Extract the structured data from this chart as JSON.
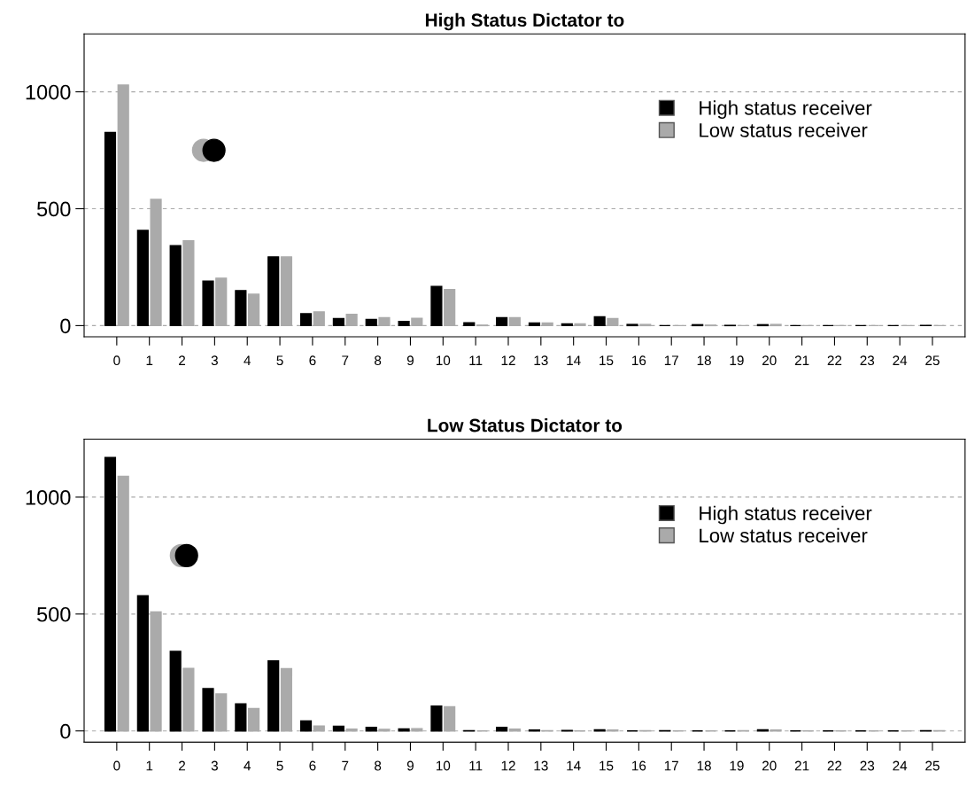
{
  "chart_data": [
    {
      "type": "bar",
      "title": "High Status Dictator to",
      "x": [
        0,
        1,
        2,
        3,
        4,
        5,
        6,
        7,
        8,
        9,
        10,
        11,
        12,
        13,
        14,
        15,
        16,
        17,
        18,
        19,
        20,
        21,
        22,
        23,
        24,
        25
      ],
      "xlim": [
        -1,
        26
      ],
      "xticks": [
        0,
        1,
        2,
        3,
        4,
        5,
        6,
        7,
        8,
        9,
        10,
        11,
        12,
        13,
        14,
        15,
        16,
        17,
        18,
        19,
        20,
        21,
        22,
        23,
        24,
        25
      ],
      "ylim": [
        -48,
        1248
      ],
      "yticks": [
        0,
        500,
        1000
      ],
      "grid": "y",
      "legend": "top right",
      "marker": "circle",
      "series": [
        {
          "name": "High status receiver",
          "color": "#000000",
          "values": [
            826,
            407,
            342,
            190,
            150,
            294,
            51,
            30,
            26,
            18,
            168,
            12,
            34,
            11,
            7,
            38,
            5,
            0,
            4,
            1,
            4,
            0,
            0,
            0,
            0,
            1
          ]
        },
        {
          "name": "Low status receiver",
          "color": "#aaaaaa",
          "values": [
            1029,
            540,
            363,
            203,
            134,
            294,
            59,
            48,
            34,
            31,
            154,
            2,
            34,
            11,
            7,
            30,
            5,
            0,
            2,
            0,
            5,
            0,
            0,
            0,
            0,
            0
          ]
        },
        {
          "type": "scatter",
          "color": "#aaaaaa",
          "x": [
            2.66
          ],
          "values": [
            750
          ]
        },
        {
          "type": "scatter",
          "color": "#000000",
          "x": [
            2.98
          ],
          "values": [
            750
          ]
        }
      ]
    },
    {
      "type": "bar",
      "title": "Low Status Dictator to",
      "x": [
        0,
        1,
        2,
        3,
        4,
        5,
        6,
        7,
        8,
        9,
        10,
        11,
        12,
        13,
        14,
        15,
        16,
        17,
        18,
        19,
        20,
        21,
        22,
        23,
        24,
        25
      ],
      "xlim": [
        -1,
        26
      ],
      "xticks": [
        0,
        1,
        2,
        3,
        4,
        5,
        6,
        7,
        8,
        9,
        10,
        11,
        12,
        13,
        14,
        15,
        16,
        17,
        18,
        19,
        20,
        21,
        22,
        23,
        24,
        25
      ],
      "ylim": [
        -48,
        1248
      ],
      "yticks": [
        0,
        500,
        1000
      ],
      "grid": "y",
      "legend": "top right",
      "marker": "circle",
      "series": [
        {
          "name": "High status receiver",
          "color": "#000000",
          "values": [
            1170,
            578,
            340,
            181,
            116,
            300,
            43,
            20,
            15,
            9,
            106,
            1,
            15,
            4,
            2,
            5,
            0,
            1,
            0,
            0,
            5,
            0,
            0,
            0,
            0,
            1
          ]
        },
        {
          "name": "Low status receiver",
          "color": "#aaaaaa",
          "values": [
            1089,
            509,
            267,
            158,
            96,
            266,
            21,
            8,
            7,
            10,
            103,
            0,
            8,
            1,
            0,
            4,
            1,
            0,
            0,
            1,
            4,
            0,
            0,
            0,
            0,
            1
          ]
        },
        {
          "type": "scatter",
          "color": "#aaaaaa",
          "x": [
            1.98
          ],
          "values": [
            750
          ]
        },
        {
          "type": "scatter",
          "color": "#000000",
          "x": [
            2.14
          ],
          "values": [
            750
          ]
        }
      ]
    }
  ]
}
